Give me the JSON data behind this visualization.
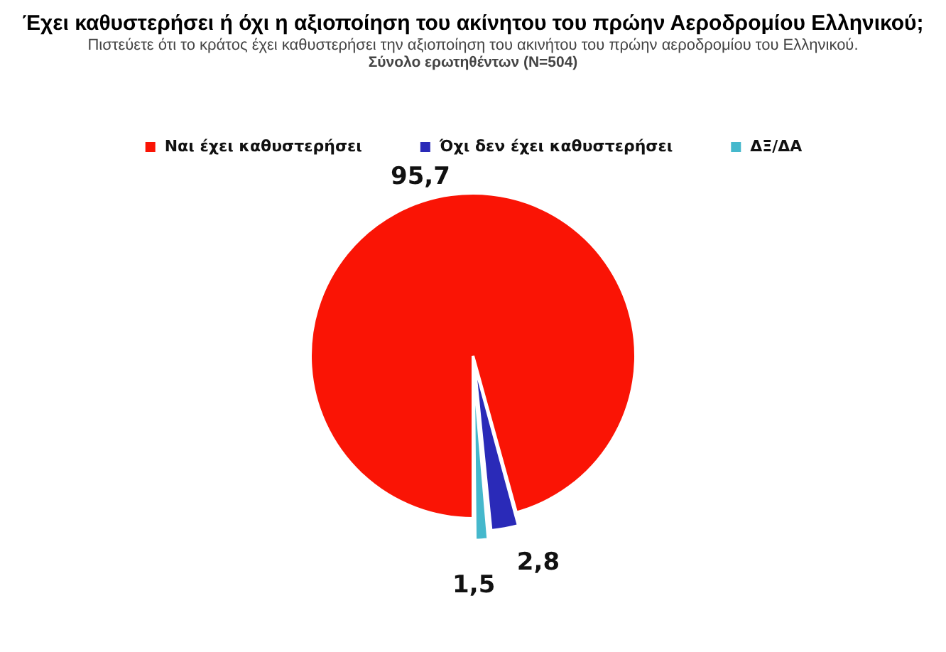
{
  "chart_data": {
    "type": "pie",
    "title": "Έχει καθυστερήσει ή όχι η αξιοποίηση του ακίνητου του πρώην Αεροδρομίου Ελληνικού;",
    "subtitle": "Πιστεύετε ότι το κράτος έχει καθυστερήσει την αξιοποίηση του ακινήτου του πρώην αεροδρομίου του Ελληνικού.",
    "annotations": [
      "Σύνολο ερωτηθέντων (N=504)"
    ],
    "categories": [
      "Ναι έχει καθυστερήσει",
      "Όχι δεν έχει καθυστερήσει",
      "ΔΞ/ΔΑ"
    ],
    "values": [
      95.7,
      2.8,
      1.5
    ],
    "colors": [
      "#fa1405",
      "#2a2ab8",
      "#45b8cc"
    ],
    "value_labels": [
      "95,7",
      "2,8",
      "1,5"
    ],
    "legend": "top"
  }
}
